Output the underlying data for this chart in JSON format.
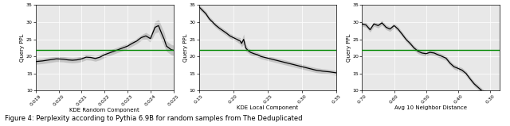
{
  "fig_width": 6.4,
  "fig_height": 1.59,
  "dpi": 100,
  "background_color": "#e8e8e8",
  "green_line_y": 22.0,
  "green_color": "#008800",
  "line_color": "black",
  "shade_color": "#999999",
  "shade_alpha": 0.45,
  "ylabel": "Query PPL",
  "caption": "Figure 4: Perplexity according to Pythia 6.9B for random samples from The Deduplicated",
  "tick_fontsize": 4.5,
  "label_fontsize": 5.0,
  "caption_fontsize": 6.0,
  "plot1": {
    "xlabel": "KDE Random Component",
    "xlim": [
      0.019,
      0.025
    ],
    "ylim": [
      10,
      35
    ],
    "yticks": [
      10,
      15,
      20,
      25,
      30,
      35
    ],
    "xticks": [
      0.019,
      0.02,
      0.021,
      0.022,
      0.023,
      0.024,
      0.025
    ],
    "x": [
      0.019,
      0.0193,
      0.0196,
      0.0199,
      0.0202,
      0.0204,
      0.0206,
      0.0208,
      0.021,
      0.0212,
      0.0214,
      0.0216,
      0.0218,
      0.022,
      0.0222,
      0.0224,
      0.0226,
      0.0228,
      0.023,
      0.0232,
      0.0234,
      0.0236,
      0.0238,
      0.024,
      0.0242,
      0.02435,
      0.0245,
      0.0246,
      0.0247,
      0.0248,
      0.0249,
      0.025
    ],
    "y": [
      18.5,
      18.7,
      19.0,
      19.3,
      19.2,
      19.0,
      18.9,
      19.0,
      19.3,
      19.8,
      19.7,
      19.4,
      19.8,
      20.5,
      21.0,
      21.5,
      22.0,
      22.5,
      23.0,
      23.8,
      24.5,
      25.5,
      26.0,
      25.2,
      28.5,
      29.0,
      26.5,
      25.0,
      23.0,
      22.5,
      22.0,
      21.8
    ],
    "y_upper": [
      19.3,
      19.5,
      19.8,
      20.1,
      20.0,
      19.8,
      19.7,
      19.8,
      20.1,
      20.6,
      20.5,
      20.2,
      20.6,
      21.3,
      21.8,
      22.3,
      22.8,
      23.3,
      23.8,
      24.6,
      25.3,
      26.3,
      27.0,
      26.2,
      30.2,
      30.8,
      28.5,
      27.0,
      24.5,
      24.0,
      23.5,
      23.3
    ],
    "y_lower": [
      17.7,
      17.9,
      18.2,
      18.5,
      18.4,
      18.2,
      18.1,
      18.2,
      18.5,
      19.0,
      18.9,
      18.6,
      19.0,
      19.7,
      20.2,
      20.7,
      21.2,
      21.7,
      22.2,
      23.0,
      23.7,
      24.7,
      25.0,
      24.2,
      26.8,
      27.2,
      24.5,
      23.0,
      21.5,
      21.0,
      20.5,
      20.3
    ]
  },
  "plot2": {
    "xlabel": "KDE Local Component",
    "xlim": [
      0.15,
      0.35
    ],
    "ylim": [
      10,
      35
    ],
    "yticks": [
      10,
      15,
      20,
      25,
      30,
      35
    ],
    "xticks": [
      0.15,
      0.2,
      0.25,
      0.3,
      0.35
    ],
    "x": [
      0.15,
      0.155,
      0.16,
      0.165,
      0.17,
      0.175,
      0.18,
      0.185,
      0.19,
      0.195,
      0.2,
      0.205,
      0.21,
      0.212,
      0.215,
      0.218,
      0.221,
      0.225,
      0.23,
      0.235,
      0.24,
      0.25,
      0.26,
      0.27,
      0.28,
      0.29,
      0.3,
      0.31,
      0.32,
      0.33,
      0.34,
      0.35
    ],
    "y": [
      34.5,
      33.5,
      32.5,
      31.0,
      30.0,
      29.0,
      28.2,
      27.5,
      26.8,
      26.0,
      25.5,
      25.0,
      24.5,
      23.8,
      25.0,
      22.5,
      21.8,
      21.2,
      20.8,
      20.5,
      20.0,
      19.5,
      19.0,
      18.5,
      18.0,
      17.5,
      17.0,
      16.5,
      16.0,
      15.7,
      15.5,
      15.2
    ],
    "y_upper": [
      35.2,
      34.2,
      33.2,
      31.7,
      30.7,
      29.7,
      28.9,
      28.2,
      27.5,
      26.7,
      26.2,
      25.7,
      25.5,
      24.8,
      26.5,
      23.5,
      22.5,
      22.0,
      21.5,
      21.2,
      20.7,
      20.2,
      19.7,
      19.2,
      18.7,
      18.2,
      17.7,
      17.2,
      16.7,
      16.4,
      16.2,
      15.9
    ],
    "y_lower": [
      33.8,
      32.8,
      31.8,
      30.3,
      29.3,
      28.3,
      27.5,
      26.8,
      26.1,
      25.3,
      24.8,
      24.3,
      23.5,
      22.8,
      23.5,
      21.5,
      21.1,
      20.4,
      20.1,
      19.8,
      19.3,
      18.8,
      18.3,
      17.8,
      17.3,
      16.8,
      16.3,
      15.8,
      15.3,
      15.0,
      14.8,
      14.5
    ]
  },
  "plot3": {
    "xlabel": "Avg 10 Neighbor Distance",
    "xlim": [
      0.7,
      0.27
    ],
    "ylim": [
      10,
      35
    ],
    "yticks": [
      10,
      15,
      20,
      25,
      30,
      35
    ],
    "xticks": [
      0.7,
      0.6,
      0.5,
      0.4,
      0.3
    ],
    "x": [
      0.7,
      0.688,
      0.675,
      0.663,
      0.65,
      0.638,
      0.625,
      0.613,
      0.6,
      0.588,
      0.575,
      0.563,
      0.55,
      0.538,
      0.525,
      0.513,
      0.5,
      0.488,
      0.475,
      0.463,
      0.45,
      0.438,
      0.425,
      0.413,
      0.4,
      0.388,
      0.375,
      0.363,
      0.35,
      0.338,
      0.32,
      0.3,
      0.285
    ],
    "y": [
      29.5,
      29.2,
      27.8,
      29.5,
      29.0,
      29.8,
      28.5,
      28.0,
      29.0,
      28.0,
      26.5,
      25.0,
      23.8,
      22.5,
      21.5,
      21.0,
      20.8,
      21.2,
      21.0,
      20.5,
      20.0,
      19.5,
      18.0,
      17.0,
      16.5,
      16.0,
      15.0,
      13.5,
      12.0,
      11.0,
      9.5,
      9.0,
      8.5
    ],
    "y_upper": [
      30.2,
      29.9,
      28.5,
      30.2,
      29.7,
      30.5,
      29.2,
      28.7,
      29.7,
      28.7,
      27.2,
      25.7,
      24.5,
      23.2,
      22.2,
      21.7,
      21.5,
      21.9,
      21.7,
      21.2,
      20.7,
      20.2,
      18.7,
      17.7,
      17.2,
      16.7,
      15.7,
      14.2,
      12.7,
      11.7,
      10.2,
      9.7,
      9.2
    ],
    "y_lower": [
      28.8,
      28.5,
      27.1,
      28.8,
      28.3,
      29.1,
      27.8,
      27.3,
      28.3,
      27.3,
      25.8,
      24.3,
      23.1,
      21.8,
      20.8,
      20.3,
      20.1,
      20.5,
      20.3,
      19.8,
      19.3,
      18.8,
      17.3,
      16.3,
      15.8,
      15.3,
      14.3,
      12.8,
      11.3,
      10.3,
      8.8,
      8.3,
      7.8
    ]
  }
}
